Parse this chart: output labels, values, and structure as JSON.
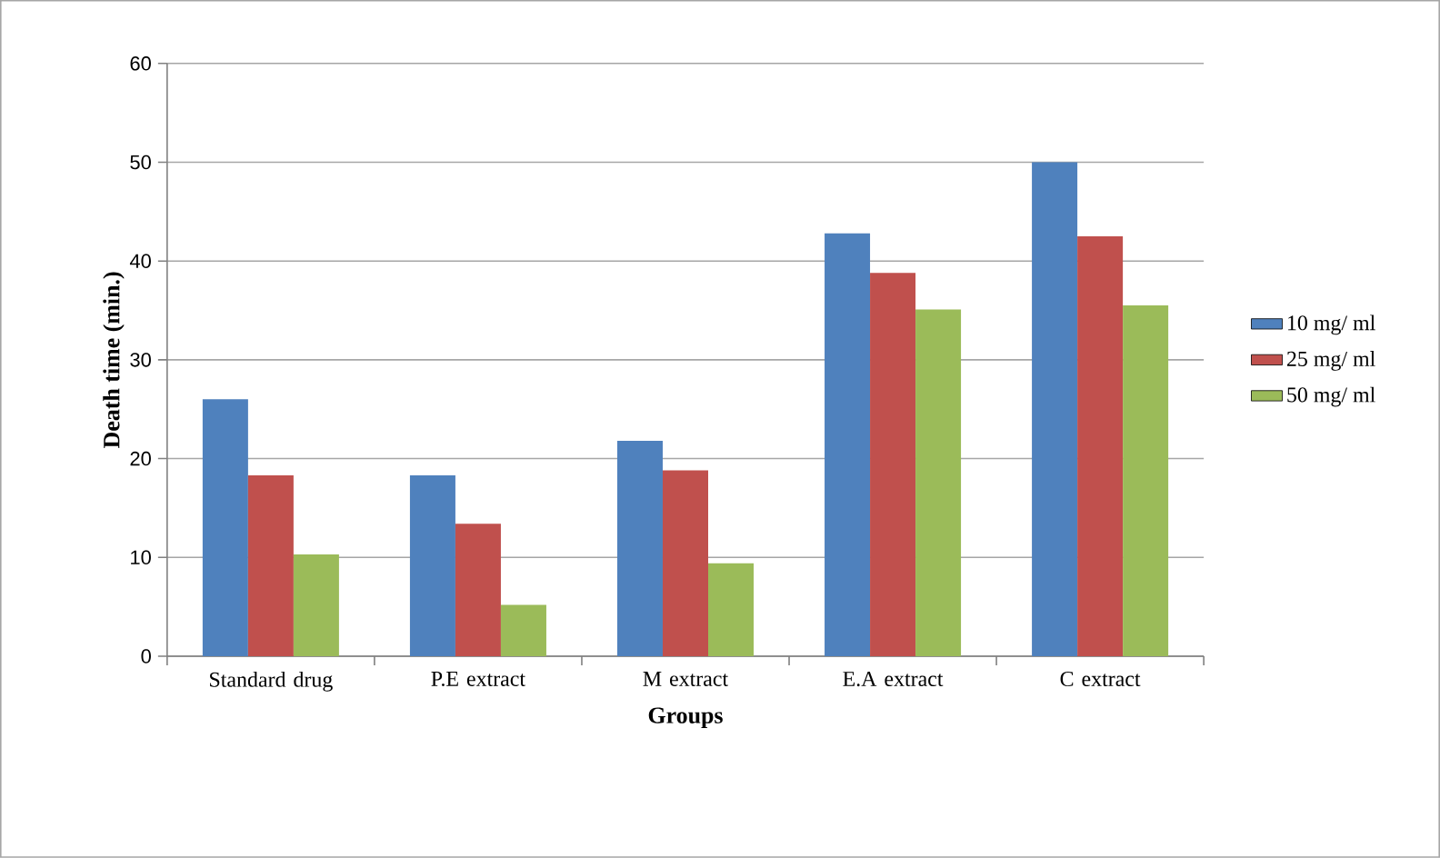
{
  "chart_data": {
    "type": "bar",
    "xlabel": "Groups",
    "ylabel": "Death time (min.)",
    "categories": [
      "Standard drug",
      "P.E extract",
      "M extract",
      "E.A extract",
      "C extract"
    ],
    "series": [
      {
        "name": "10 mg/ ml",
        "color": "#4f81bd",
        "values": [
          26.0,
          18.3,
          21.8,
          42.8,
          50.0
        ]
      },
      {
        "name": "25 mg/ ml",
        "color": "#c0504d",
        "values": [
          18.3,
          13.4,
          18.8,
          38.8,
          42.5
        ]
      },
      {
        "name": "50 mg/ ml",
        "color": "#9bbb59",
        "values": [
          10.3,
          5.2,
          9.4,
          35.1,
          35.5
        ]
      }
    ],
    "ylim": [
      0,
      60
    ],
    "yticks": [
      0,
      10,
      20,
      30,
      40,
      50,
      60
    ],
    "grid": "y",
    "legend": "right"
  }
}
